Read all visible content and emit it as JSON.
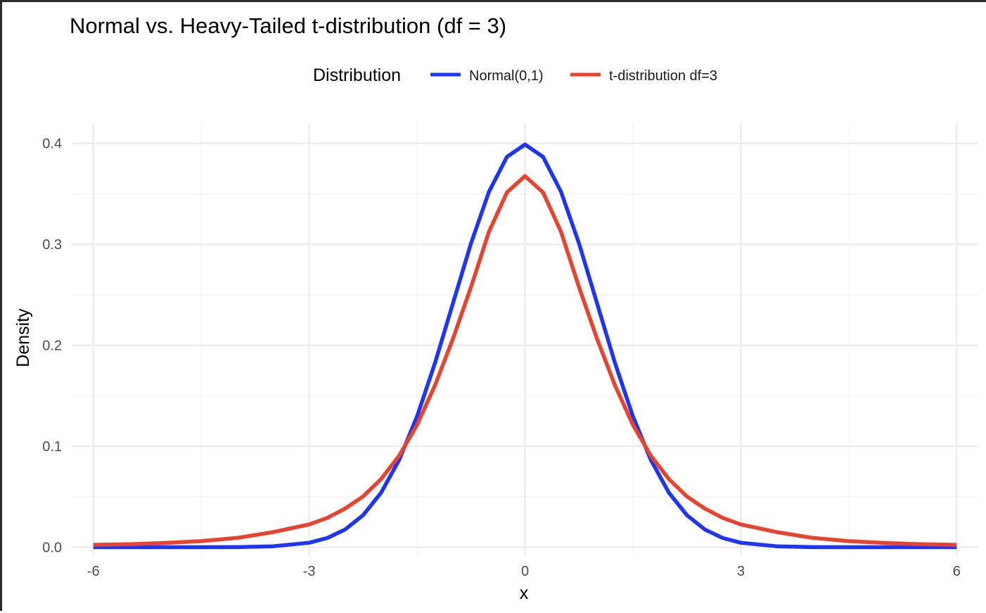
{
  "chart_data": {
    "type": "line",
    "title": "Normal vs. Heavy-Tailed t-distribution (df = 3)",
    "xlabel": "x",
    "ylabel": "Density",
    "xlim": [
      -6.3,
      6.3
    ],
    "ylim": [
      -0.008,
      0.42
    ],
    "x_ticks": [
      -6,
      -3,
      0,
      3,
      6
    ],
    "x_tick_labels": [
      "-6",
      "-3",
      "0",
      "3",
      "6"
    ],
    "y_ticks": [
      0.0,
      0.1,
      0.2,
      0.3,
      0.4
    ],
    "y_tick_labels": [
      "0.0",
      "0.1",
      "0.2",
      "0.3",
      "0.4"
    ],
    "x_minor_ticks": [
      -4.5,
      -1.5,
      1.5,
      4.5
    ],
    "y_minor_ticks": [
      0.05,
      0.15,
      0.25,
      0.35
    ],
    "grid": true,
    "legend": {
      "title": "Distribution",
      "position": "top"
    },
    "x": [
      -6,
      -5.5,
      -5,
      -4.5,
      -4,
      -3.5,
      -3,
      -2.75,
      -2.5,
      -2.25,
      -2,
      -1.75,
      -1.5,
      -1.25,
      -1,
      -0.75,
      -0.5,
      -0.25,
      0,
      0.25,
      0.5,
      0.75,
      1,
      1.25,
      1.5,
      1.75,
      2,
      2.25,
      2.5,
      2.75,
      3,
      3.5,
      4,
      4.5,
      5,
      5.5,
      6
    ],
    "series": [
      {
        "name": "Normal(0,1)",
        "color": "#1f35f5",
        "values": [
          0.0,
          0.0,
          0.0,
          0.0,
          0.0001,
          0.0009,
          0.0044,
          0.0091,
          0.0175,
          0.0317,
          0.054,
          0.0863,
          0.1295,
          0.1826,
          0.242,
          0.3011,
          0.3521,
          0.3867,
          0.3989,
          0.3867,
          0.3521,
          0.3011,
          0.242,
          0.1826,
          0.1295,
          0.0863,
          0.054,
          0.0317,
          0.0175,
          0.0091,
          0.0044,
          0.0009,
          0.0001,
          0.0,
          0.0,
          0.0,
          0.0
        ]
      },
      {
        "name": "t-distribution df=3",
        "color": "#e8432e",
        "values": [
          0.0024,
          0.003,
          0.0042,
          0.006,
          0.0092,
          0.0149,
          0.0225,
          0.029,
          0.0382,
          0.0503,
          0.0675,
          0.0906,
          0.1211,
          0.1604,
          0.2067,
          0.2578,
          0.3125,
          0.3515,
          0.3676,
          0.3515,
          0.3125,
          0.2578,
          0.2067,
          0.1604,
          0.1211,
          0.0906,
          0.0675,
          0.0503,
          0.0382,
          0.029,
          0.0225,
          0.0149,
          0.0092,
          0.006,
          0.0042,
          0.003,
          0.0024
        ]
      }
    ]
  }
}
